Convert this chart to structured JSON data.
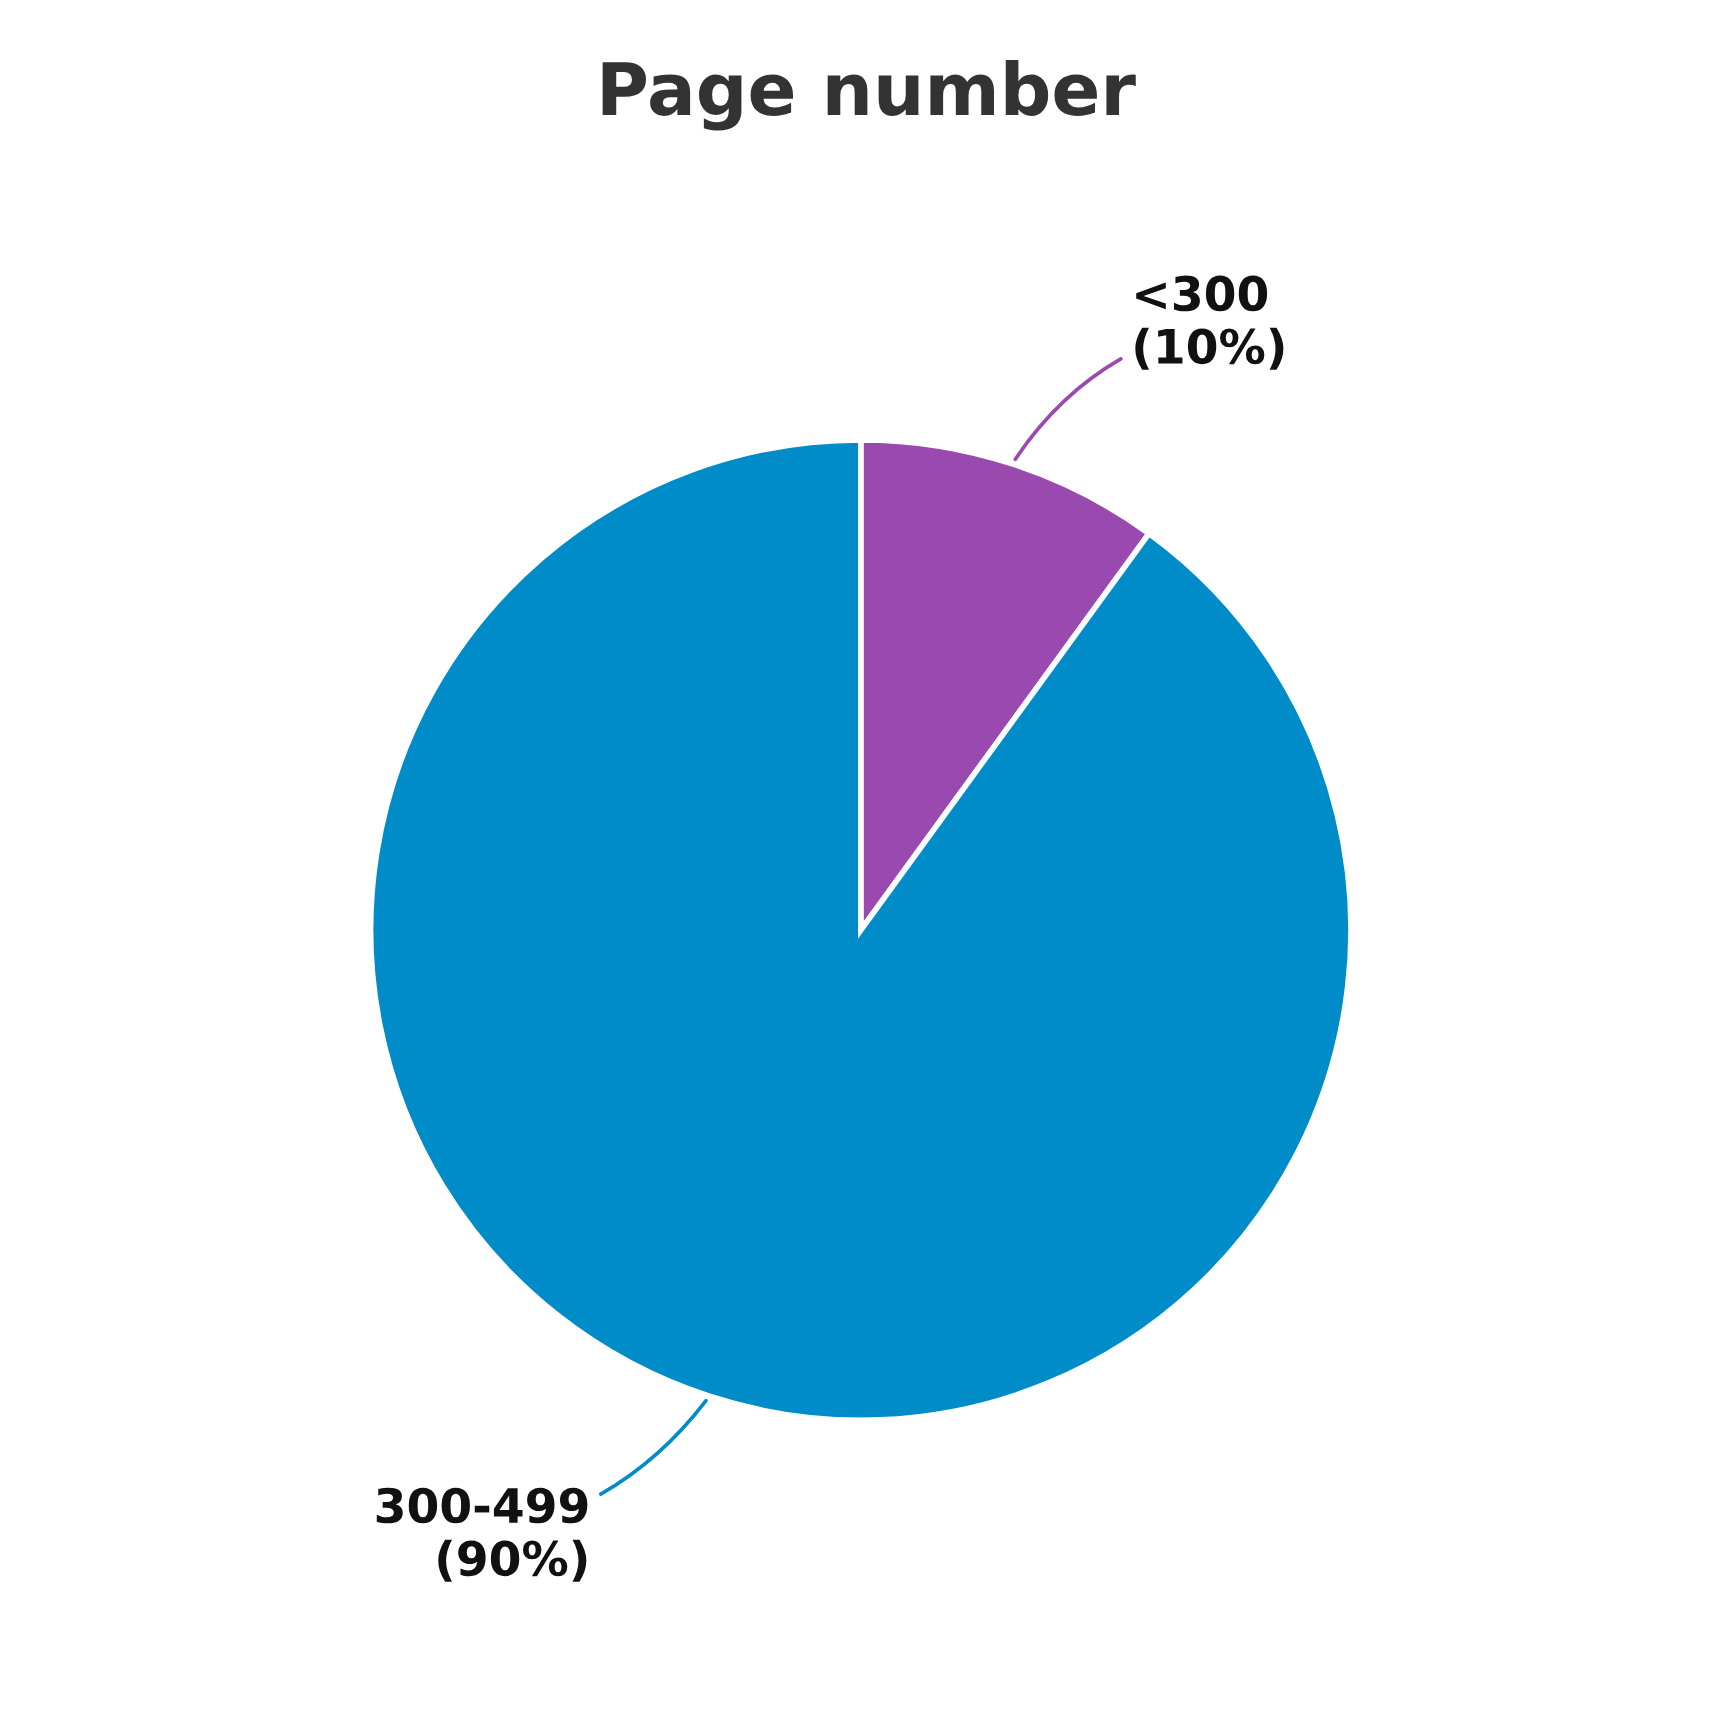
{
  "chart_data": {
    "type": "pie",
    "title": "Page number",
    "categories": [
      "<300",
      "300-499"
    ],
    "values": [
      10,
      90
    ],
    "value_labels": [
      "(10%)",
      "(90%)"
    ],
    "colors": [
      "#9a4aae",
      "#008cc8"
    ]
  }
}
